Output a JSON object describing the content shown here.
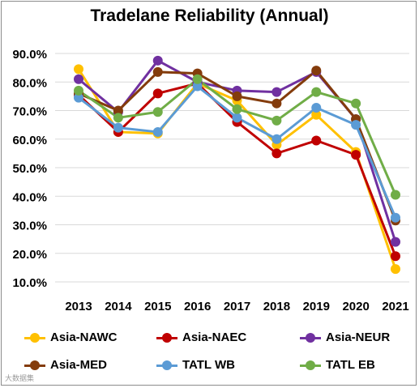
{
  "chart_data": {
    "type": "line",
    "title": "Tradelane Reliability (Annual)",
    "xlabel": "",
    "ylabel": "",
    "categories": [
      "2013",
      "2014",
      "2015",
      "2016",
      "2017",
      "2018",
      "2019",
      "2020",
      "2021"
    ],
    "ylim": [
      10,
      90
    ],
    "y_ticks": [
      "10.0%",
      "20.0%",
      "30.0%",
      "40.0%",
      "50.0%",
      "60.0%",
      "70.0%",
      "80.0%",
      "90.0%"
    ],
    "grid": "horizontal",
    "legend_position": "bottom",
    "series": [
      {
        "name": "Asia-NAWC",
        "color": "#FFC000",
        "values": [
          84.5,
          62.5,
          62.0,
          79.5,
          73.5,
          58.0,
          68.5,
          55.5,
          14.5
        ]
      },
      {
        "name": "Asia-NAEC",
        "color": "#C00000",
        "values": [
          75.5,
          62.5,
          76.0,
          79.5,
          66.0,
          55.0,
          59.5,
          54.5,
          19.0
        ]
      },
      {
        "name": "Asia-NEUR",
        "color": "#7030A0",
        "values": [
          81.0,
          69.5,
          87.5,
          80.0,
          77.0,
          76.5,
          83.5,
          67.0,
          24.0
        ]
      },
      {
        "name": "Asia-MED",
        "color": "#843C0C",
        "values": [
          76.0,
          70.0,
          83.5,
          83.0,
          75.0,
          72.5,
          84.0,
          67.0,
          31.5
        ]
      },
      {
        "name": "TATL WB",
        "color": "#5B9BD5",
        "values": [
          74.5,
          64.0,
          62.5,
          78.5,
          67.5,
          60.0,
          71.0,
          65.0,
          32.5
        ]
      },
      {
        "name": "TATL EB",
        "color": "#70AD47",
        "values": [
          77.0,
          67.5,
          69.5,
          81.0,
          70.5,
          66.5,
          76.5,
          72.5,
          40.5
        ]
      }
    ]
  },
  "watermark": "大数据集"
}
